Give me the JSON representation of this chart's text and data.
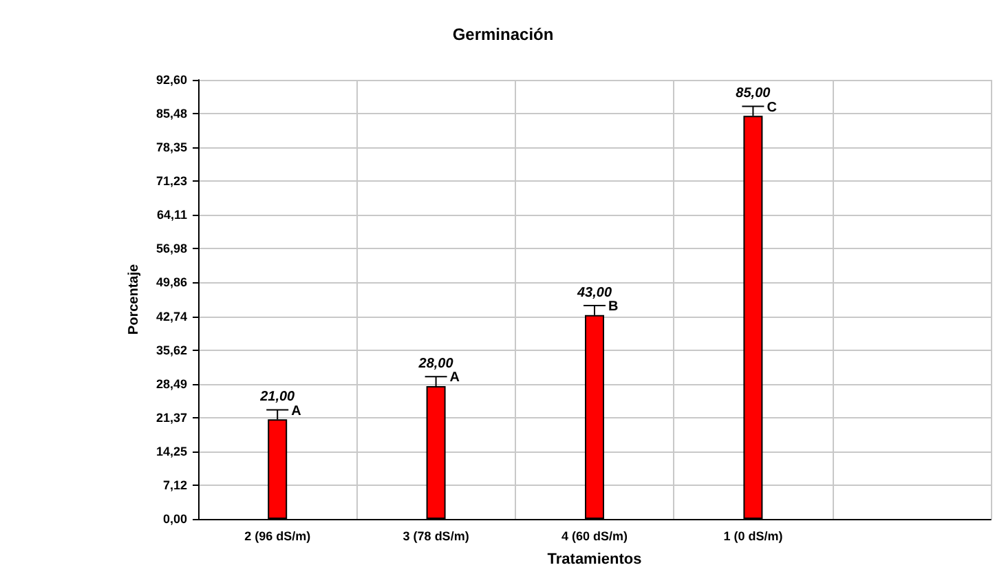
{
  "chart_data": {
    "type": "bar",
    "title": "Germinación",
    "xlabel": "Tratamientos",
    "ylabel": "Porcentaje",
    "categories": [
      "2 (96 dS/m)",
      "3 (78 dS/m)",
      "4 (60 dS/m)",
      "1 (0 dS/m)"
    ],
    "values": [
      21,
      28,
      43,
      85
    ],
    "color": "#ff0000",
    "value_labels": [
      "21,00",
      "28,00",
      "43,00",
      "85,00"
    ],
    "errors": [
      [
        21,
        23
      ],
      [
        28,
        30
      ],
      [
        43,
        45
      ],
      [
        85,
        87
      ]
    ],
    "annotations": [
      {
        "text": "A",
        "x": "2 (96 dS/m)",
        "y": 23
      },
      {
        "text": "A",
        "x": "3 (78 dS/m)",
        "y": 30
      },
      {
        "text": "B",
        "x": "4 (60 dS/m)",
        "y": 45
      },
      {
        "text": "C",
        "x": "1 (0 dS/m)",
        "y": 87
      }
    ],
    "ylim": [
      0,
      92.6
    ],
    "yticks": [
      {
        "value": 0,
        "label": "0,00"
      },
      {
        "value": 7.12,
        "label": "7,12"
      },
      {
        "value": 14.25,
        "label": "14,25"
      },
      {
        "value": 21.37,
        "label": "21,37"
      },
      {
        "value": 28.49,
        "label": "28,49"
      },
      {
        "value": 35.62,
        "label": "35,62"
      },
      {
        "value": 42.74,
        "label": "42,74"
      },
      {
        "value": 49.86,
        "label": "49,86"
      },
      {
        "value": 56.98,
        "label": "56,98"
      },
      {
        "value": 64.11,
        "label": "64,11"
      },
      {
        "value": 71.23,
        "label": "71,23"
      },
      {
        "value": 78.35,
        "label": "78,35"
      },
      {
        "value": 85.48,
        "label": "85,48"
      },
      {
        "value": 92.6,
        "label": "92,60"
      }
    ],
    "grid": true
  }
}
